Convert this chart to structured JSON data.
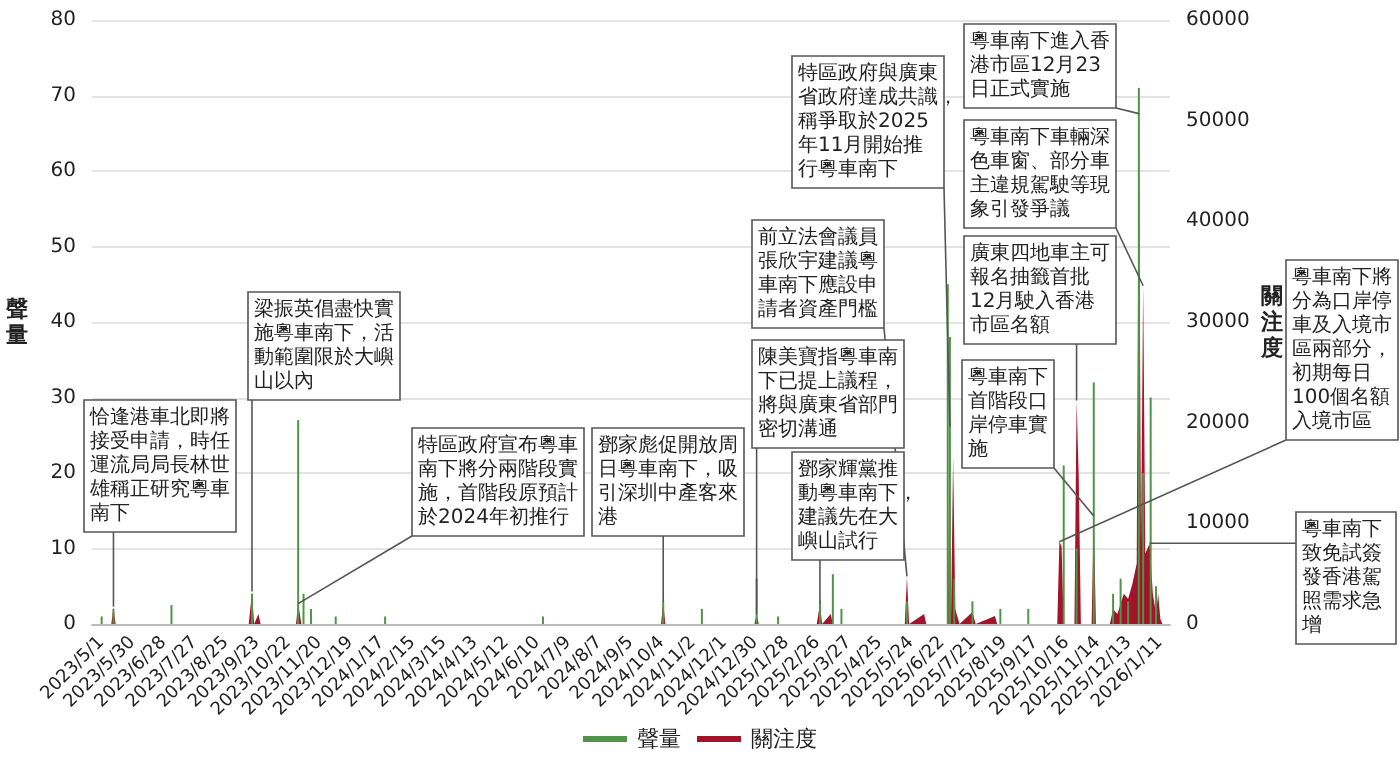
{
  "chart_data": {
    "type": "bar",
    "ylabel": "聲量",
    "y2label": "關注度",
    "xlim": [
      "2023-04-22",
      "2026-01-20"
    ],
    "xticks": [
      {
        "value": "2023-05-01",
        "label": "2023/5/1"
      },
      {
        "value": "2023-05-30",
        "label": "2023/5/30"
      },
      {
        "value": "2023-06-28",
        "label": "2023/6/28"
      },
      {
        "value": "2023-07-27",
        "label": "2023/7/27"
      },
      {
        "value": "2023-08-25",
        "label": "2023/8/25"
      },
      {
        "value": "2023-09-23",
        "label": "2023/9/23"
      },
      {
        "value": "2023-10-22",
        "label": "2023/10/22"
      },
      {
        "value": "2023-11-20",
        "label": "2023/11/20"
      },
      {
        "value": "2023-12-19",
        "label": "2023/12/19"
      },
      {
        "value": "2024-01-17",
        "label": "2024/1/17"
      },
      {
        "value": "2024-02-15",
        "label": "2024/2/15"
      },
      {
        "value": "2024-03-15",
        "label": "2024/3/15"
      },
      {
        "value": "2024-04-13",
        "label": "2024/4/13"
      },
      {
        "value": "2024-05-12",
        "label": "2024/5/12"
      },
      {
        "value": "2024-06-10",
        "label": "2024/6/10"
      },
      {
        "value": "2024-07-09",
        "label": "2024/7/9"
      },
      {
        "value": "2024-08-07",
        "label": "2024/8/7"
      },
      {
        "value": "2024-09-05",
        "label": "2024/9/5"
      },
      {
        "value": "2024-10-04",
        "label": "2024/10/4"
      },
      {
        "value": "2024-11-02",
        "label": "2024/11/2"
      },
      {
        "value": "2024-12-01",
        "label": "2024/12/1"
      },
      {
        "value": "2024-12-30",
        "label": "2024/12/30"
      },
      {
        "value": "2025-01-28",
        "label": "2025/1/28"
      },
      {
        "value": "2025-02-26",
        "label": "2025/2/26"
      },
      {
        "value": "2025-03-27",
        "label": "2025/3/27"
      },
      {
        "value": "2025-04-25",
        "label": "2025/4/25"
      },
      {
        "value": "2025-05-24",
        "label": "2025/5/24"
      },
      {
        "value": "2025-06-22",
        "label": "2025/6/22"
      },
      {
        "value": "2025-07-21",
        "label": "2025/7/21"
      },
      {
        "value": "2025-08-19",
        "label": "2025/8/19"
      },
      {
        "value": "2025-09-17",
        "label": "2025/9/17"
      },
      {
        "value": "2025-10-16",
        "label": "2025/10/16"
      },
      {
        "value": "2025-11-14",
        "label": "2025/11/14"
      },
      {
        "value": "2025-12-13",
        "label": "2025/12/13"
      },
      {
        "value": "2026-01-11",
        "label": "2026/1/11"
      }
    ],
    "ylim": [
      0,
      80
    ],
    "yticks": [
      0,
      10,
      20,
      30,
      40,
      50,
      60,
      70,
      80
    ],
    "y2lim": [
      0,
      60000
    ],
    "y2ticks": [
      0,
      10000,
      20000,
      30000,
      40000,
      50000,
      60000
    ],
    "grid": "y",
    "legend": "bottom",
    "series": [
      {
        "name": "聲量",
        "color": "#4f9448",
        "x": [
          "2023-05-01",
          "2023-05-12",
          "2023-07-05",
          "2023-09-18",
          "2023-10-31",
          "2023-11-05",
          "2023-11-12",
          "2023-12-05",
          "2024-01-20",
          "2024-06-15",
          "2024-10-05",
          "2024-11-10",
          "2024-12-31",
          "2025-01-20",
          "2025-02-28",
          "2025-03-12",
          "2025-03-20",
          "2025-05-20",
          "2025-06-27",
          "2025-06-29",
          "2025-07-03",
          "2025-07-20",
          "2025-08-15",
          "2025-09-10",
          "2025-10-13",
          "2025-10-25",
          "2025-11-10",
          "2025-11-28",
          "2025-12-05",
          "2025-12-12",
          "2025-12-22",
          "2025-12-26",
          "2026-01-02",
          "2026-01-07"
        ],
        "values": [
          1,
          2,
          2.5,
          4,
          27,
          4,
          2,
          1,
          1,
          1,
          3,
          2,
          6,
          1,
          3,
          6.6,
          2,
          3,
          45,
          38,
          6,
          3,
          2,
          2,
          21,
          10,
          32,
          4,
          6,
          3,
          71,
          20,
          30,
          5
        ]
      },
      {
        "name": "關注度",
        "type": "area",
        "axis": "y2",
        "color": "#a3142a",
        "x": [
          "2023-05-01",
          "2023-05-10",
          "2023-05-12",
          "2023-05-14",
          "2023-09-15",
          "2023-09-18",
          "2023-09-20",
          "2023-09-24",
          "2023-09-26",
          "2023-10-29",
          "2023-10-31",
          "2023-11-03",
          "2024-10-03",
          "2024-10-05",
          "2024-10-07",
          "2024-12-29",
          "2024-12-31",
          "2025-01-02",
          "2025-02-25",
          "2025-02-28",
          "2025-03-02",
          "2025-03-10",
          "2025-03-12",
          "2025-05-18",
          "2025-05-20",
          "2025-05-22",
          "2025-06-05",
          "2025-06-07",
          "2025-06-27",
          "2025-06-29",
          "2025-06-30",
          "2025-07-02",
          "2025-07-04",
          "2025-07-08",
          "2025-07-20",
          "2025-07-23",
          "2025-08-10",
          "2025-08-12",
          "2025-10-07",
          "2025-10-09",
          "2025-10-11",
          "2025-10-13",
          "2025-10-23",
          "2025-10-25",
          "2025-10-27",
          "2025-10-29",
          "2025-11-08",
          "2025-11-10",
          "2025-11-12",
          "2025-11-25",
          "2025-11-28",
          "2025-12-02",
          "2025-12-05",
          "2025-12-08",
          "2025-12-12",
          "2025-12-16",
          "2025-12-20",
          "2025-12-22",
          "2025-12-24",
          "2025-12-26",
          "2025-12-28",
          "2026-01-01",
          "2026-01-04",
          "2026-01-07",
          "2026-01-09",
          "2026-01-11",
          "2026-01-13"
        ],
        "values": [
          0,
          0,
          1700,
          0,
          0,
          3200,
          0,
          1000,
          0,
          0,
          2000,
          0,
          0,
          2200,
          0,
          0,
          1000,
          0,
          0,
          2000,
          0,
          1000,
          0,
          0,
          4700,
          0,
          1000,
          0,
          0,
          19600,
          0,
          16600,
          1500,
          0,
          1200,
          0,
          800,
          0,
          0,
          8200,
          7700,
          0,
          0,
          22200,
          14600,
          0,
          0,
          10700,
          0,
          0,
          1500,
          1000,
          2000,
          3000,
          2500,
          4000,
          6000,
          50700,
          8000,
          33600,
          7000,
          8000,
          3000,
          1000,
          3000,
          500,
          0
        ]
      }
    ],
    "annotations": [
      {
        "text": "恰逢港車北即將接受申請，時任運流局局長林世雄稱正研究粵車南下",
        "x": "2023-05-12",
        "y": 2.3
      },
      {
        "text": "梁振英倡盡快實施粵車南下，活動範圍限於大嶼山以內",
        "x": "2023-09-18",
        "y": 4.3
      },
      {
        "text": "特區政府宣布粵車南下將分兩階段實施，首階段原預計於2024年初推行",
        "x": "2023-10-31",
        "y": 2.7
      },
      {
        "text": "鄧家彪促開放周日粵車南下，吸引深圳中產客來港",
        "x": "2024-10-05",
        "y": 2.9
      },
      {
        "text": "陳美寶指粵車南下已提上議程，將與廣東省部門密切溝通",
        "x": "2024-12-31",
        "y": 1.3
      },
      {
        "text": "鄧家輝黨推動粵車南下，建議先在大嶼山試行",
        "x": "2025-02-28",
        "y": 2.7
      },
      {
        "text": "前立法會議員張欣宇建議粵車南下應設申請者資產門檻",
        "x": "2025-05-20",
        "y": 6.3
      },
      {
        "text": "特區政府與廣東省政府達成共識，稱爭取於2025年11月開始推行粵車南下",
        "x": "2025-06-29",
        "y": 26.1
      },
      {
        "text": "粵車南下將分為口岸停車及入境市區兩部分，初期每日100個名額入境市區",
        "x": "2025-10-09",
        "y": 10.9
      },
      {
        "text": "粵車南下首階段口岸停車實施",
        "x": "2025-11-10",
        "y": 14.3
      },
      {
        "text": "廣東四地車主可報名抽籤首批12月駛入香港市區名額",
        "x": "2025-10-25",
        "y": 29.6
      },
      {
        "text": "粵車南下車輛深色車窗、部分車主違規駕駛等現象引發爭議",
        "x": "2025-12-26",
        "y": 44.8
      },
      {
        "text": "粵車南下進入香港市區12月23日正式實施",
        "x": "2025-12-22",
        "y": 67.6
      },
      {
        "text": "粵車南下致免試簽發香港駕照需求急增",
        "x": "2026-01-01",
        "y": 10.7
      }
    ]
  }
}
